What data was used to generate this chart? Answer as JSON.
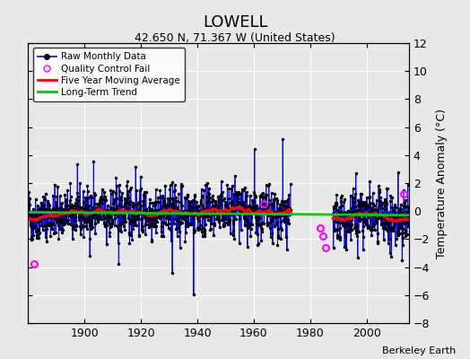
{
  "title": "LOWELL",
  "subtitle": "42.650 N, 71.367 W (United States)",
  "ylabel": "Temperature Anomaly (°C)",
  "credit": "Berkeley Earth",
  "xlim": [
    1880,
    2015
  ],
  "ylim": [
    -8,
    12
  ],
  "yticks": [
    -8,
    -6,
    -4,
    -2,
    0,
    2,
    4,
    6,
    8,
    10,
    12
  ],
  "xticks": [
    1900,
    1920,
    1940,
    1960,
    1980,
    2000
  ],
  "raw_color": "#0000FF",
  "ma_color": "#FF0000",
  "trend_color": "#00CC00",
  "qc_color": "#FF00FF",
  "dot_color": "#000000",
  "background_color": "#E8E8E8",
  "grid_color": "#FFFFFF",
  "legend_loc": "upper left",
  "seed": 42,
  "gap_start": 1973,
  "gap_end": 1988,
  "qc_years": [
    1882.0,
    1963.5,
    1983.5,
    1984.5,
    1985.5,
    2013.0
  ],
  "qc_vals": [
    -3.8,
    0.5,
    -1.2,
    -1.8,
    -2.6,
    1.2
  ]
}
